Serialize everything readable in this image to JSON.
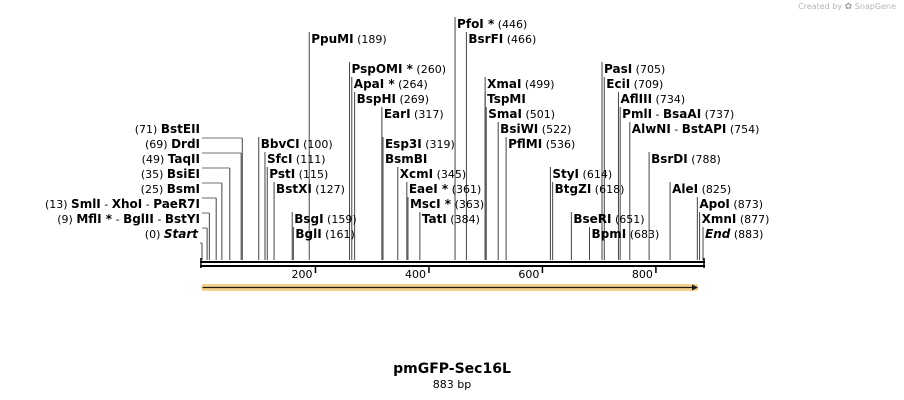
{
  "branding": {
    "created_by": "Created by",
    "product": "SnapGene"
  },
  "sequence": {
    "name": "pmGFP-Sec16L",
    "length_label": "883 bp",
    "length": 883
  },
  "ruler_ticks": [
    200,
    400,
    600,
    800
  ],
  "features": [
    {
      "name": "orf-arrow",
      "start": 1,
      "end": 883,
      "direction": "forward",
      "color": "#f0c060"
    }
  ],
  "sites": [
    {
      "row": 0,
      "labels": [
        "Start"
      ],
      "display_pos": "0",
      "positions": [
        0
      ],
      "italic": true,
      "pos_first": true
    },
    {
      "row": 1,
      "labels": [
        "MflI *",
        "BglII",
        "BstYI"
      ],
      "display_pos": "9",
      "positions": [
        9
      ],
      "pos_first": true
    },
    {
      "row": 2,
      "labels": [
        "SmlI",
        "XhoI",
        "PaeR7I"
      ],
      "display_pos": "13",
      "positions": [
        13
      ],
      "pos_first": true
    },
    {
      "row": 3,
      "labels": [
        "BsmI"
      ],
      "display_pos": "25",
      "positions": [
        25
      ],
      "pos_first": true
    },
    {
      "row": 4,
      "labels": [
        "BsiEI"
      ],
      "display_pos": "35",
      "positions": [
        35
      ],
      "pos_first": true
    },
    {
      "row": 5,
      "labels": [
        "TaqII"
      ],
      "display_pos": "49",
      "positions": [
        49
      ],
      "pos_first": true
    },
    {
      "row": 6,
      "labels": [
        "DrdI"
      ],
      "display_pos": "69",
      "positions": [
        69
      ],
      "pos_first": true
    },
    {
      "row": 7,
      "labels": [
        "BstEII"
      ],
      "display_pos": "71",
      "positions": [
        71
      ],
      "pos_first": true
    },
    {
      "row": 0,
      "labels": [
        "BglI"
      ],
      "display_pos": "161",
      "positions": [
        161
      ]
    },
    {
      "row": 1,
      "labels": [
        "BsgI"
      ],
      "display_pos": "159",
      "positions": [
        159
      ]
    },
    {
      "row": 3,
      "labels": [
        "BstXI"
      ],
      "display_pos": "127",
      "positions": [
        127
      ]
    },
    {
      "row": 4,
      "labels": [
        "PstI"
      ],
      "display_pos": "115",
      "positions": [
        115
      ]
    },
    {
      "row": 5,
      "labels": [
        "SfcI"
      ],
      "display_pos": "111",
      "positions": [
        111
      ]
    },
    {
      "row": 6,
      "labels": [
        "BbvCI"
      ],
      "display_pos": "100",
      "positions": [
        100
      ]
    },
    {
      "row": 13,
      "labels": [
        "PpuMI"
      ],
      "display_pos": "189",
      "positions": [
        189
      ]
    },
    {
      "row": 11,
      "labels": [
        "PspOMI *"
      ],
      "display_pos": "260",
      "positions": [
        260
      ]
    },
    {
      "row": 10,
      "labels": [
        "ApaI *"
      ],
      "display_pos": "264",
      "positions": [
        264
      ]
    },
    {
      "row": 9,
      "labels": [
        "BspHI"
      ],
      "display_pos": "269",
      "positions": [
        269
      ]
    },
    {
      "row": 8,
      "labels": [
        "EarI"
      ],
      "display_pos": "317",
      "positions": [
        317
      ]
    },
    {
      "row": 6,
      "labels": [
        "Esp3I"
      ],
      "display_pos": "319",
      "positions": [
        319
      ]
    },
    {
      "row": 5,
      "labels": [
        "BsmBI"
      ],
      "display_pos": "",
      "positions": [
        319
      ]
    },
    {
      "row": 4,
      "labels": [
        "XcmI"
      ],
      "display_pos": "345",
      "positions": [
        345
      ]
    },
    {
      "row": 3,
      "labels": [
        "EaeI *"
      ],
      "display_pos": "361",
      "positions": [
        361
      ]
    },
    {
      "row": 2,
      "labels": [
        "MscI *"
      ],
      "display_pos": "363",
      "positions": [
        363
      ]
    },
    {
      "row": 1,
      "labels": [
        "TatI"
      ],
      "display_pos": "384",
      "positions": [
        384
      ]
    },
    {
      "row": 14,
      "labels": [
        "PfoI *"
      ],
      "display_pos": "446",
      "positions": [
        446
      ]
    },
    {
      "row": 13,
      "labels": [
        "BsrFI"
      ],
      "display_pos": "466",
      "positions": [
        466
      ]
    },
    {
      "row": 10,
      "labels": [
        "XmaI"
      ],
      "display_pos": "499",
      "positions": [
        499
      ]
    },
    {
      "row": 9,
      "labels": [
        "TspMI"
      ],
      "display_pos": "",
      "positions": [
        499
      ]
    },
    {
      "row": 8,
      "labels": [
        "SmaI"
      ],
      "display_pos": "501",
      "positions": [
        501
      ]
    },
    {
      "row": 7,
      "labels": [
        "BsiWI"
      ],
      "display_pos": "522",
      "positions": [
        522
      ]
    },
    {
      "row": 6,
      "labels": [
        "PflMI"
      ],
      "display_pos": "536",
      "positions": [
        536
      ]
    },
    {
      "row": 4,
      "labels": [
        "StyI"
      ],
      "display_pos": "614",
      "positions": [
        614
      ]
    },
    {
      "row": 3,
      "labels": [
        "BtgZI"
      ],
      "display_pos": "618",
      "positions": [
        618
      ]
    },
    {
      "row": 1,
      "labels": [
        "BseRI"
      ],
      "display_pos": "651",
      "positions": [
        651
      ]
    },
    {
      "row": 0,
      "labels": [
        "BpmI"
      ],
      "display_pos": "683",
      "positions": [
        683
      ]
    },
    {
      "row": 11,
      "labels": [
        "PasI"
      ],
      "display_pos": "705",
      "positions": [
        705
      ]
    },
    {
      "row": 10,
      "labels": [
        "EciI"
      ],
      "display_pos": "709",
      "positions": [
        709
      ]
    },
    {
      "row": 9,
      "labels": [
        "AflIII"
      ],
      "display_pos": "734",
      "positions": [
        734
      ]
    },
    {
      "row": 8,
      "labels": [
        "PmlI",
        "BsaAI"
      ],
      "display_pos": "737",
      "positions": [
        737
      ]
    },
    {
      "row": 7,
      "labels": [
        "AlwNI",
        "BstAPI"
      ],
      "display_pos": "754",
      "positions": [
        754
      ]
    },
    {
      "row": 5,
      "labels": [
        "BsrDI"
      ],
      "display_pos": "788",
      "positions": [
        788
      ]
    },
    {
      "row": 3,
      "labels": [
        "AleI"
      ],
      "display_pos": "825",
      "positions": [
        825
      ]
    },
    {
      "row": 2,
      "labels": [
        "ApoI"
      ],
      "display_pos": "873",
      "positions": [
        873
      ]
    },
    {
      "row": 1,
      "labels": [
        "XmnI"
      ],
      "display_pos": "877",
      "positions": [
        877
      ]
    },
    {
      "row": 0,
      "labels": [
        "End"
      ],
      "display_pos": "883",
      "positions": [
        883
      ],
      "italic": true
    }
  ]
}
